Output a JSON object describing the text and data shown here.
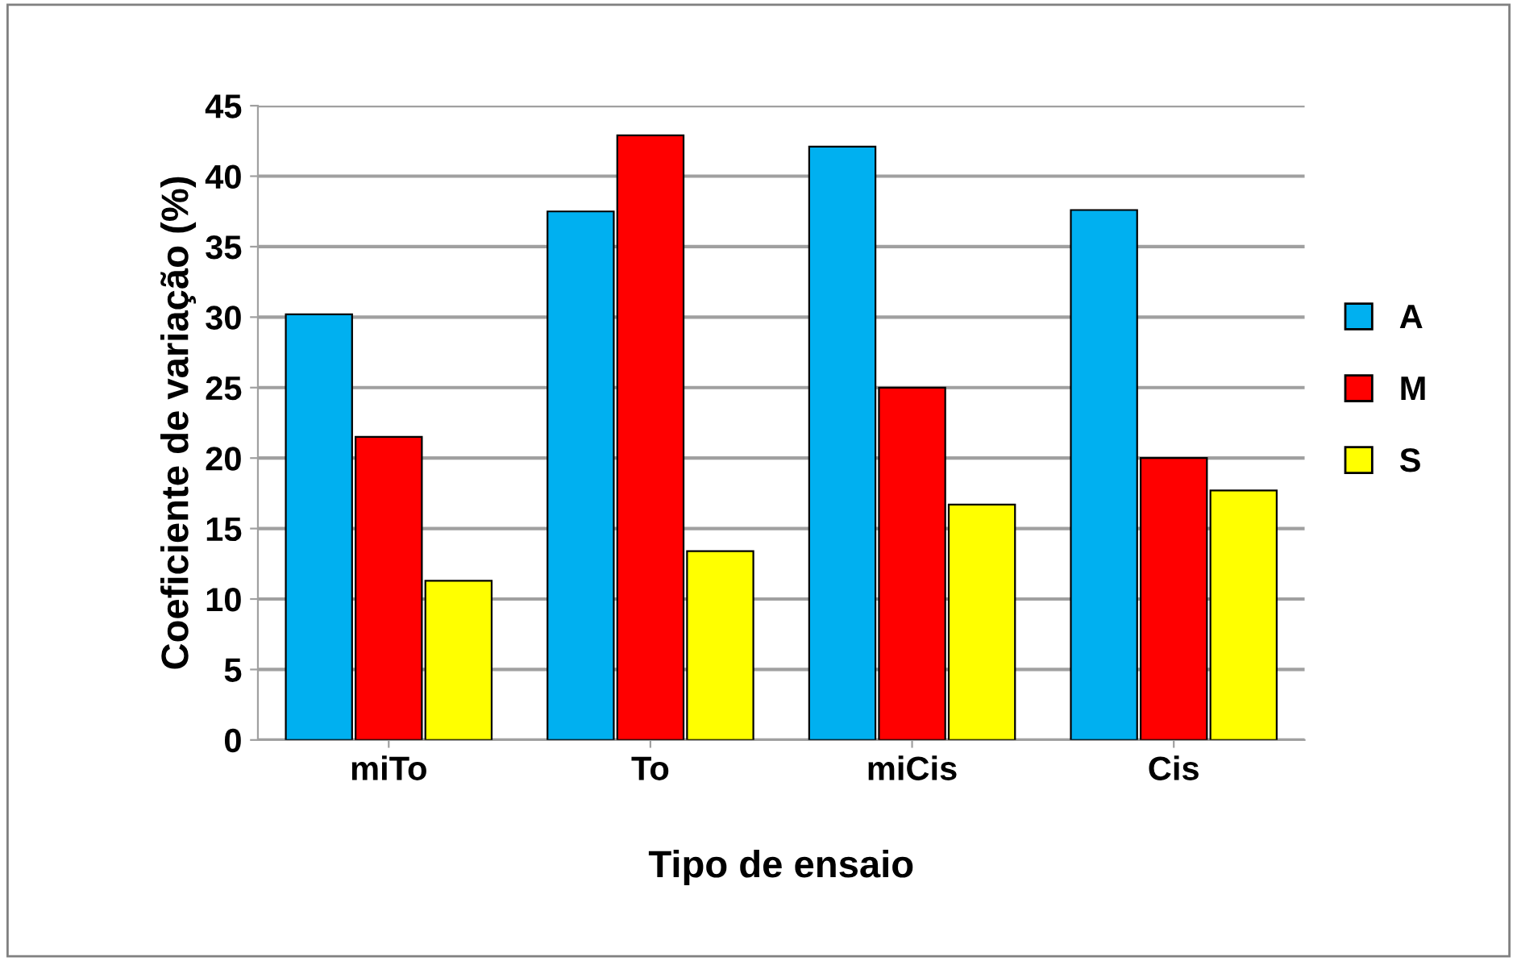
{
  "chart_data": {
    "type": "bar",
    "xlabel": "Tipo de ensaio",
    "ylabel": "Coeficiente de variação (%)",
    "categories": [
      "miTo",
      "To",
      "miCis",
      "Cis"
    ],
    "series": [
      {
        "name": "A",
        "color": "#00b0f0",
        "values": [
          30.2,
          37.5,
          42.1,
          37.6
        ]
      },
      {
        "name": "M",
        "color": "#ff0000",
        "values": [
          21.5,
          42.9,
          25.0,
          20.0
        ]
      },
      {
        "name": "S",
        "color": "#ffff00",
        "values": [
          11.3,
          13.4,
          16.7,
          17.7
        ]
      }
    ],
    "ylim": [
      0,
      45
    ],
    "yticks": [
      0,
      5,
      10,
      15,
      20,
      25,
      30,
      35,
      40,
      45
    ],
    "grid": "y",
    "legend": "right"
  }
}
